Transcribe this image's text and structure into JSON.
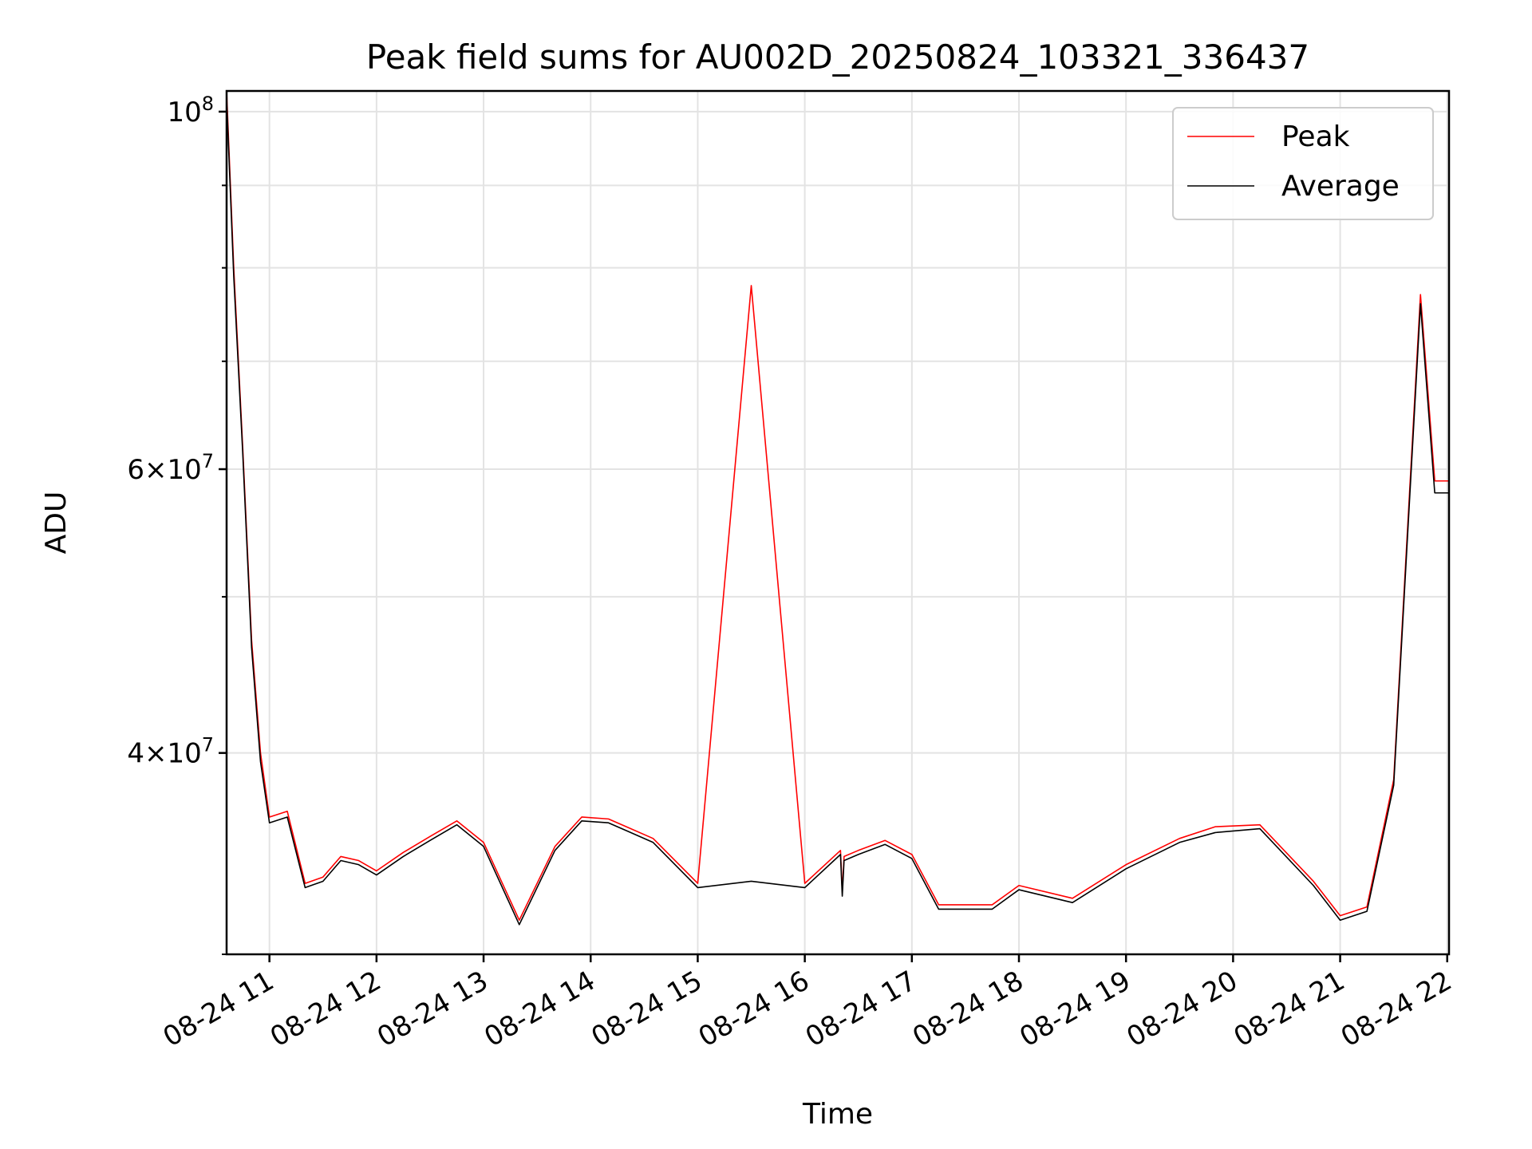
{
  "chart_data": {
    "type": "line",
    "title": "Peak field sums for AU002D_20250824_103321_336437",
    "xlabel": "Time",
    "ylabel": "ADU",
    "y_scale": "log",
    "ylim": [
      30000000,
      103000000
    ],
    "xlim": [
      "2025-08-24 10:36",
      "2025-08-24 22:01"
    ],
    "x_tick_labels": [
      "08-24 11",
      "08-24 12",
      "08-24 13",
      "08-24 14",
      "08-24 15",
      "08-24 16",
      "08-24 17",
      "08-24 18",
      "08-24 19",
      "08-24 20",
      "08-24 21",
      "08-24 22"
    ],
    "x_ticks": [
      "2025-08-24 11:00",
      "2025-08-24 12:00",
      "2025-08-24 13:00",
      "2025-08-24 14:00",
      "2025-08-24 15:00",
      "2025-08-24 16:00",
      "2025-08-24 17:00",
      "2025-08-24 18:00",
      "2025-08-24 19:00",
      "2025-08-24 20:00",
      "2025-08-24 21:00",
      "2025-08-24 22:00"
    ],
    "y_ticks_major": [
      {
        "value": 100000000,
        "base": "10",
        "exp": "8",
        "mantissa": ""
      },
      {
        "value": 60000000,
        "mantissa": "6",
        "base": "10",
        "exp": "7"
      },
      {
        "value": 40000000,
        "mantissa": "4",
        "base": "10",
        "exp": "7"
      }
    ],
    "y_ticks_minor": [
      30000000,
      50000000,
      70000000,
      80000000,
      90000000
    ],
    "grid": true,
    "legend_position": "top-right",
    "series": [
      {
        "name": "Peak",
        "color": "#ff0000",
        "x": [
          "2025-08-24 10:36",
          "2025-08-24 10:40",
          "2025-08-24 10:45",
          "2025-08-24 10:50",
          "2025-08-24 10:55",
          "2025-08-24 11:00",
          "2025-08-24 11:10",
          "2025-08-24 11:20",
          "2025-08-24 11:30",
          "2025-08-24 11:40",
          "2025-08-24 11:50",
          "2025-08-24 12:00",
          "2025-08-24 12:15",
          "2025-08-24 12:30",
          "2025-08-24 12:45",
          "2025-08-24 13:00",
          "2025-08-24 13:20",
          "2025-08-24 13:40",
          "2025-08-24 13:55",
          "2025-08-24 14:10",
          "2025-08-24 14:20",
          "2025-08-24 14:35",
          "2025-08-24 15:00",
          "2025-08-24 15:30",
          "2025-08-24 16:00",
          "2025-08-24 16:20",
          "2025-08-24 16:21",
          "2025-08-24 16:22",
          "2025-08-24 16:30",
          "2025-08-24 16:45",
          "2025-08-24 17:00",
          "2025-08-24 17:15",
          "2025-08-24 17:30",
          "2025-08-24 17:45",
          "2025-08-24 18:00",
          "2025-08-24 18:30",
          "2025-08-24 19:00",
          "2025-08-24 19:30",
          "2025-08-24 19:50",
          "2025-08-24 20:15",
          "2025-08-24 20:45",
          "2025-08-24 21:00",
          "2025-08-24 21:15",
          "2025-08-24 21:30",
          "2025-08-24 21:45",
          "2025-08-24 21:53",
          "2025-08-24 22:01"
        ],
        "y": [
          103000000,
          80000000,
          62000000,
          47000000,
          40000000,
          36500000,
          36800000,
          33200000,
          33500000,
          34500000,
          34300000,
          33800000,
          34700000,
          35500000,
          36300000,
          35200000,
          31500000,
          35000000,
          36500000,
          36400000,
          36000000,
          35400000,
          33200000,
          78000000,
          33200000,
          34800000,
          32800000,
          34500000,
          34800000,
          35300000,
          34600000,
          32200000,
          32200000,
          32200000,
          33100000,
          32500000,
          34100000,
          35400000,
          36000000,
          36100000,
          33300000,
          31700000,
          32100000,
          38500000,
          77000000,
          59000000,
          59000000
        ]
      },
      {
        "name": "Average",
        "color": "#000000",
        "x": [
          "2025-08-24 10:36",
          "2025-08-24 10:40",
          "2025-08-24 10:45",
          "2025-08-24 10:50",
          "2025-08-24 10:55",
          "2025-08-24 11:00",
          "2025-08-24 11:10",
          "2025-08-24 11:20",
          "2025-08-24 11:30",
          "2025-08-24 11:40",
          "2025-08-24 11:50",
          "2025-08-24 12:00",
          "2025-08-24 12:15",
          "2025-08-24 12:30",
          "2025-08-24 12:45",
          "2025-08-24 13:00",
          "2025-08-24 13:20",
          "2025-08-24 13:40",
          "2025-08-24 13:55",
          "2025-08-24 14:10",
          "2025-08-24 14:20",
          "2025-08-24 14:35",
          "2025-08-24 15:00",
          "2025-08-24 15:30",
          "2025-08-24 16:00",
          "2025-08-24 16:20",
          "2025-08-24 16:21",
          "2025-08-24 16:22",
          "2025-08-24 16:30",
          "2025-08-24 16:45",
          "2025-08-24 17:00",
          "2025-08-24 17:15",
          "2025-08-24 17:30",
          "2025-08-24 17:45",
          "2025-08-24 18:00",
          "2025-08-24 18:30",
          "2025-08-24 19:00",
          "2025-08-24 19:30",
          "2025-08-24 19:50",
          "2025-08-24 20:15",
          "2025-08-24 20:45",
          "2025-08-24 21:00",
          "2025-08-24 21:15",
          "2025-08-24 21:30",
          "2025-08-24 21:45",
          "2025-08-24 21:53",
          "2025-08-24 22:01"
        ],
        "y": [
          102000000,
          79000000,
          61500000,
          46500000,
          39500000,
          36200000,
          36500000,
          33000000,
          33300000,
          34300000,
          34100000,
          33600000,
          34500000,
          35300000,
          36100000,
          35000000,
          31300000,
          34800000,
          36300000,
          36200000,
          35800000,
          35200000,
          33000000,
          33300000,
          33000000,
          34600000,
          32600000,
          34300000,
          34600000,
          35100000,
          34400000,
          32000000,
          32000000,
          32000000,
          32900000,
          32300000,
          33900000,
          35200000,
          35700000,
          35900000,
          33100000,
          31500000,
          31900000,
          38200000,
          76000000,
          58000000,
          58000000
        ]
      }
    ]
  }
}
